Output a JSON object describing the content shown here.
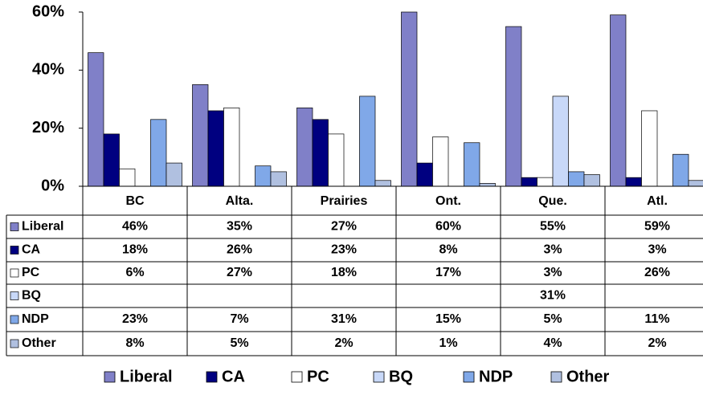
{
  "chart_data": {
    "type": "bar",
    "categories": [
      "BC",
      "Alta.",
      "Prairies",
      "Ont.",
      "Que.",
      "Atl."
    ],
    "series": [
      {
        "name": "Liberal",
        "color": "#8080c8",
        "values": [
          46,
          35,
          27,
          60,
          55,
          59
        ],
        "value_labels": [
          "46%",
          "35%",
          "27%",
          "60%",
          "55%",
          "59%"
        ]
      },
      {
        "name": "CA",
        "color": "#000080",
        "values": [
          18,
          26,
          23,
          8,
          3,
          3
        ],
        "value_labels": [
          "18%",
          "26%",
          "23%",
          "8%",
          "3%",
          "3%"
        ]
      },
      {
        "name": "PC",
        "color": "#ffffff",
        "values": [
          6,
          27,
          18,
          17,
          3,
          26
        ],
        "value_labels": [
          "6%",
          "27%",
          "18%",
          "17%",
          "3%",
          "26%"
        ]
      },
      {
        "name": "BQ",
        "color": "#c8d8f8",
        "values": [
          null,
          null,
          null,
          null,
          31,
          null
        ],
        "value_labels": [
          null,
          null,
          null,
          null,
          "31%",
          null
        ]
      },
      {
        "name": "NDP",
        "color": "#80a8e8",
        "values": [
          23,
          7,
          31,
          15,
          5,
          11
        ],
        "value_labels": [
          "23%",
          "7%",
          "31%",
          "15%",
          "5%",
          "11%"
        ]
      },
      {
        "name": "Other",
        "color": "#b0c0e0",
        "values": [
          8,
          5,
          2,
          1,
          4,
          2
        ],
        "value_labels": [
          "8%",
          "5%",
          "2%",
          "1%",
          "4%",
          "2%"
        ]
      }
    ],
    "ylim": [
      0,
      60
    ],
    "yticks": [
      {
        "value": 0,
        "label": "0%"
      },
      {
        "value": 20,
        "label": "20%"
      },
      {
        "value": 40,
        "label": "40%"
      },
      {
        "value": 60,
        "label": "60%"
      }
    ],
    "grid": false
  }
}
